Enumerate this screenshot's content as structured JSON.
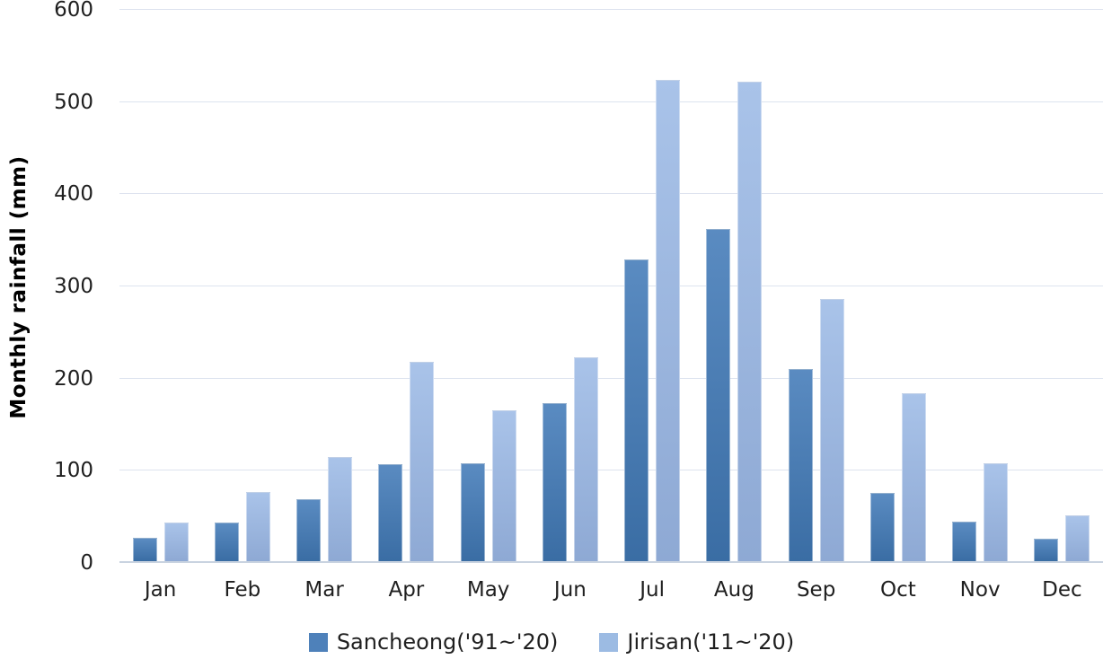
{
  "chart_data": {
    "type": "bar",
    "title": "",
    "xlabel": "",
    "ylabel": "Monthly rainfall (mm)",
    "ylim": [
      0,
      600
    ],
    "ytick_step": 100,
    "grid": true,
    "legend_position": "bottom",
    "categories": [
      "Jan",
      "Feb",
      "Mar",
      "Apr",
      "May",
      "Jun",
      "Jul",
      "Aug",
      "Sep",
      "Oct",
      "Nov",
      "Dec"
    ],
    "series": [
      {
        "name": "Sancheong('91~'20)",
        "key": "sancheong",
        "legend_color": "#4E81BA",
        "gradient_top": "#5A8BC1",
        "gradient_bottom": "#3A6DA4",
        "values": [
          25,
          42,
          67,
          105,
          106,
          171,
          327,
          360,
          208,
          74,
          43,
          24
        ]
      },
      {
        "name": "Jirisan('11~'20)",
        "key": "jirisan",
        "legend_color": "#9CBBE3",
        "gradient_top": "#A9C3E9",
        "gradient_bottom": "#8EA9D4",
        "values": [
          42,
          75,
          113,
          216,
          164,
          221,
          522,
          520,
          284,
          182,
          106,
          50
        ]
      }
    ]
  },
  "colors": {
    "gridline": "#DDE3EF",
    "baseline": "#C9D3E0",
    "tick_text": "#1F1F1F"
  }
}
